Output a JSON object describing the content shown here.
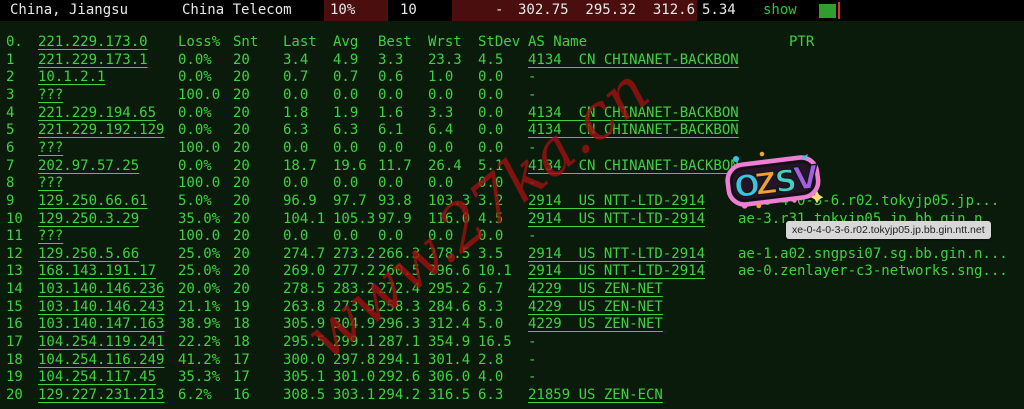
{
  "topbar": {
    "location": "China, Jiangsu",
    "isp": "China Telecom",
    "loss_pct": "10%",
    "sent": "10",
    "dash": "-",
    "stats": "302.75  295.32  312.6",
    "stdev": "5.34",
    "show_label": "show",
    "red_cell_color": "#4a0e0e",
    "indicator_green": "#2f9e2f",
    "cursor_red": "#e03131"
  },
  "table": {
    "text_green": "#40d040",
    "background": "#0a1b0c",
    "header": {
      "hop": "0.",
      "ip": "221.229.173.0",
      "loss": "Loss%",
      "snt": "Snt",
      "last": "Last",
      "avg": "Avg",
      "best": "Best",
      "wrst": "Wrst",
      "stdev": "StDev",
      "as_name": "AS Name",
      "ptr": "PTR"
    },
    "rows": [
      {
        "hop": "1",
        "ip": "221.229.173.1",
        "loss": "0.0%",
        "snt": "20",
        "last": "3.4",
        "avg": "4.9",
        "best": "3.3",
        "wrst": "23.3",
        "stdev": "4.5",
        "as_name": "4134  CN CHINANET-BACKBON",
        "ptr": ""
      },
      {
        "hop": "2",
        "ip": "10.1.2.1",
        "loss": "0.0%",
        "snt": "20",
        "last": "0.7",
        "avg": "0.7",
        "best": "0.6",
        "wrst": "1.0",
        "stdev": "0.0",
        "as_name": "-",
        "ptr": ""
      },
      {
        "hop": "3",
        "ip": "???",
        "loss": "100.0",
        "snt": "20",
        "last": "0.0",
        "avg": "0.0",
        "best": "0.0",
        "wrst": "0.0",
        "stdev": "0.0",
        "as_name": "-",
        "ptr": ""
      },
      {
        "hop": "4",
        "ip": "221.229.194.65",
        "loss": "0.0%",
        "snt": "20",
        "last": "1.8",
        "avg": "1.9",
        "best": "1.6",
        "wrst": "3.3",
        "stdev": "0.0",
        "as_name": "4134  CN CHINANET-BACKBON",
        "ptr": ""
      },
      {
        "hop": "5",
        "ip": "221.229.192.129",
        "loss": "0.0%",
        "snt": "20",
        "last": "6.3",
        "avg": "6.3",
        "best": "6.1",
        "wrst": "6.4",
        "stdev": "0.0",
        "as_name": "4134  CN CHINANET-BACKBON",
        "ptr": ""
      },
      {
        "hop": "6",
        "ip": "???",
        "loss": "100.0",
        "snt": "20",
        "last": "0.0",
        "avg": "0.0",
        "best": "0.0",
        "wrst": "0.0",
        "stdev": "0.0",
        "as_name": "-",
        "ptr": ""
      },
      {
        "hop": "7",
        "ip": "202.97.57.25",
        "loss": "0.0%",
        "snt": "20",
        "last": "18.7",
        "avg": "19.6",
        "best": "11.7",
        "wrst": "26.4",
        "stdev": "5.1",
        "as_name": "4134  CN CHINANET-BACKBON",
        "ptr": ""
      },
      {
        "hop": "8",
        "ip": "???",
        "loss": "100.0",
        "snt": "20",
        "last": "0.0",
        "avg": "0.0",
        "best": "0.0",
        "wrst": "0.0",
        "stdev": "0.0",
        "as_name": "-",
        "ptr": ""
      },
      {
        "hop": "9",
        "ip": "129.250.66.61",
        "loss": "5.0%",
        "snt": "20",
        "last": "96.9",
        "avg": "97.7",
        "best": "93.8",
        "wrst": "103.3",
        "stdev": "3.2",
        "as_name": "2914  US NTT-LTD-2914",
        "ptr": "xe-0-4-0-3-6.r02.tokyjp05.jp..."
      },
      {
        "hop": "10",
        "ip": "129.250.3.29",
        "loss": "35.0%",
        "snt": "20",
        "last": "104.1",
        "avg": "105.3",
        "best": "97.9",
        "wrst": "116.0",
        "stdev": "4.5",
        "as_name": "2914  US NTT-LTD-2914",
        "ptr": "ae-3.r31.tokyjp05.jp.bb.gin.n"
      },
      {
        "hop": "11",
        "ip": "???",
        "loss": "100.0",
        "snt": "20",
        "last": "0.0",
        "avg": "0.0",
        "best": "0.0",
        "wrst": "0.0",
        "stdev": "0.0",
        "as_name": "-",
        "ptr": ""
      },
      {
        "hop": "12",
        "ip": "129.250.5.66",
        "loss": "25.0%",
        "snt": "20",
        "last": "274.7",
        "avg": "273.2",
        "best": "266.3",
        "wrst": "278.5",
        "stdev": "3.5",
        "as_name": "2914  US NTT-LTD-2914",
        "ptr": "ae-1.a02.sngpsi07.sg.bb.gin.n..."
      },
      {
        "hop": "13",
        "ip": "168.143.191.17",
        "loss": "25.0%",
        "snt": "20",
        "last": "269.0",
        "avg": "277.2",
        "best": "260.5",
        "wrst": "296.6",
        "stdev": "10.1",
        "as_name": "2914  US NTT-LTD-2914",
        "ptr": "ae-0.zenlayer-c3-networks.sng..."
      },
      {
        "hop": "14",
        "ip": "103.140.146.236",
        "loss": "20.0%",
        "snt": "20",
        "last": "278.5",
        "avg": "283.2",
        "best": "272.4",
        "wrst": "295.2",
        "stdev": "6.7",
        "as_name": "4229  US ZEN-NET",
        "ptr": ""
      },
      {
        "hop": "15",
        "ip": "103.140.146.243",
        "loss": "21.1%",
        "snt": "19",
        "last": "263.8",
        "avg": "273.5",
        "best": "258.3",
        "wrst": "284.6",
        "stdev": "8.3",
        "as_name": "4229  US ZEN-NET",
        "ptr": ""
      },
      {
        "hop": "16",
        "ip": "103.140.147.163",
        "loss": "38.9%",
        "snt": "18",
        "last": "305.9",
        "avg": "304.9",
        "best": "296.3",
        "wrst": "312.4",
        "stdev": "5.0",
        "as_name": "4229  US ZEN-NET",
        "ptr": ""
      },
      {
        "hop": "17",
        "ip": "104.254.119.241",
        "loss": "22.2%",
        "snt": "18",
        "last": "295.5",
        "avg": "299.1",
        "best": "287.1",
        "wrst": "354.9",
        "stdev": "16.5",
        "as_name": "-",
        "ptr": ""
      },
      {
        "hop": "18",
        "ip": "104.254.116.249",
        "loss": "41.2%",
        "snt": "17",
        "last": "300.0",
        "avg": "297.8",
        "best": "294.1",
        "wrst": "301.4",
        "stdev": "2.8",
        "as_name": "-",
        "ptr": ""
      },
      {
        "hop": "19",
        "ip": "104.254.117.45",
        "loss": "35.3%",
        "snt": "17",
        "last": "305.1",
        "avg": "301.0",
        "best": "292.6",
        "wrst": "306.0",
        "stdev": "4.0",
        "as_name": "-",
        "ptr": ""
      },
      {
        "hop": "20",
        "ip": "129.227.231.213",
        "loss": "6.2%",
        "snt": "16",
        "last": "308.5",
        "avg": "303.1",
        "best": "294.2",
        "wrst": "316.5",
        "stdev": "6.3",
        "as_name": "21859 US ZEN-ECN",
        "ptr": ""
      }
    ]
  },
  "overlays": {
    "watermark_text": "www.27ka.cn",
    "watermark_color": "#9e1111",
    "tooltip_text": "xe-0-4-0-3-6.r02.tokyjp05.jp.bb.gin.ntt.net",
    "sticker_text": "OZSV"
  }
}
